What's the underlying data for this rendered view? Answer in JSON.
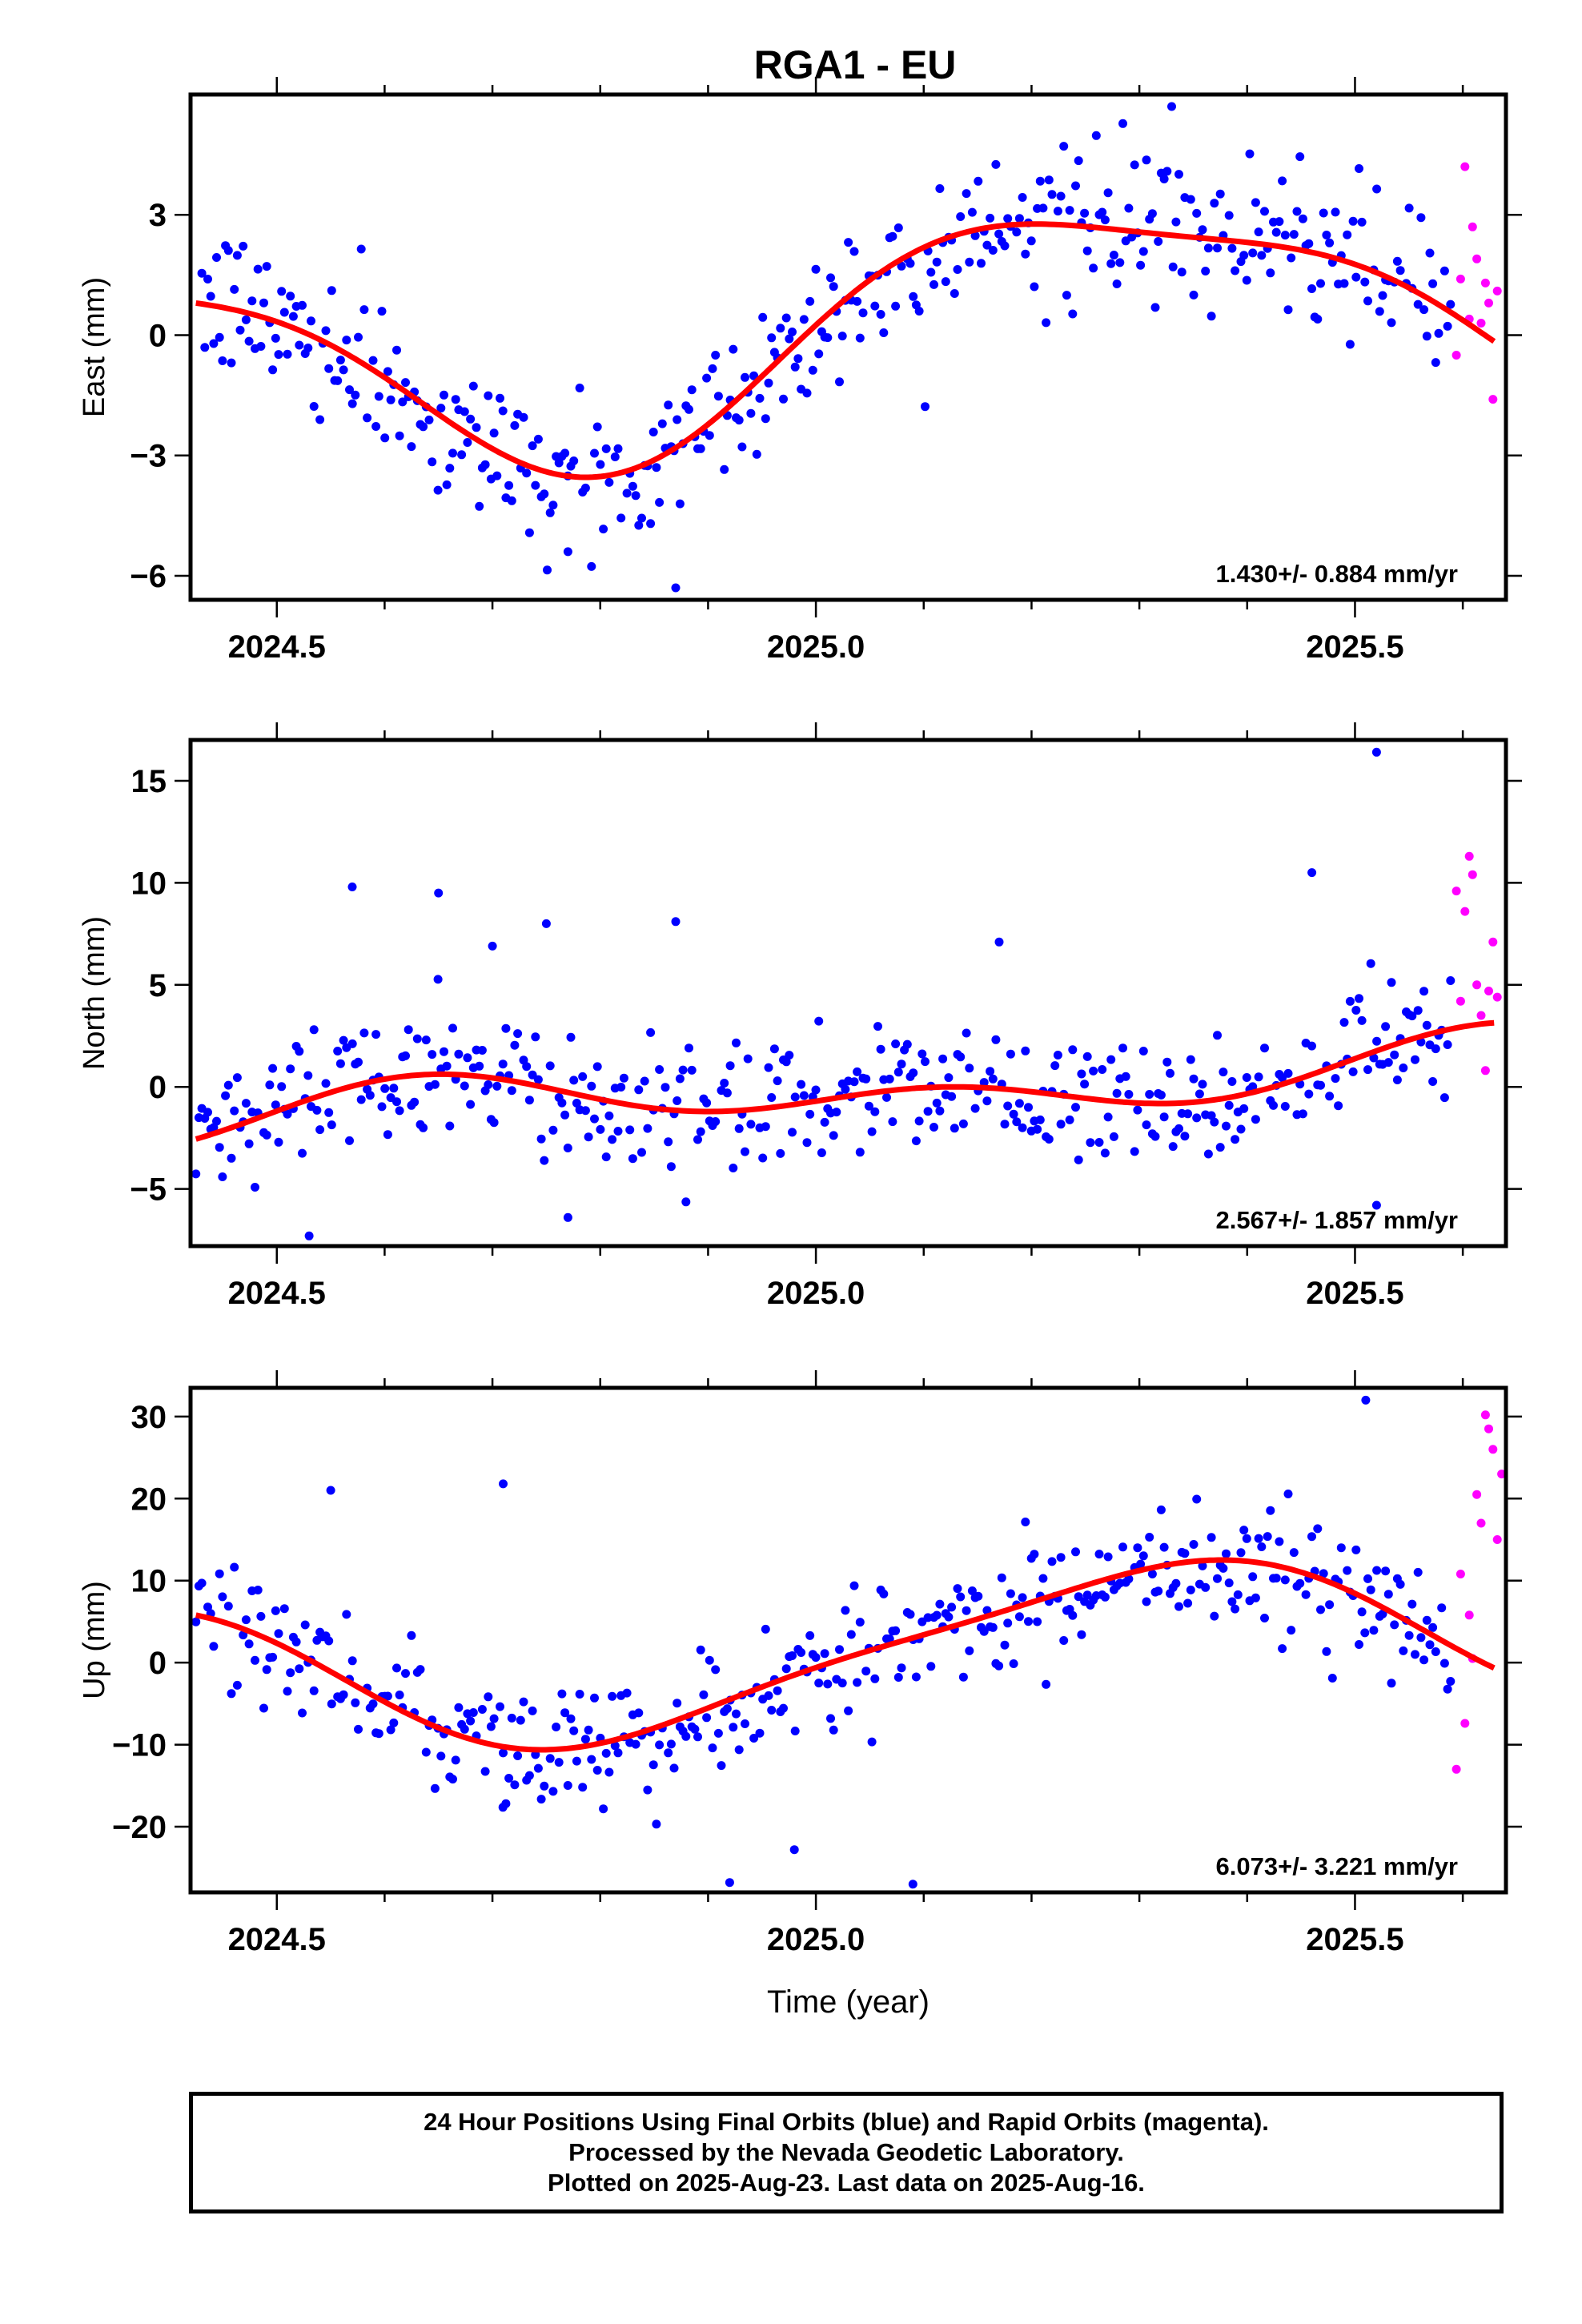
{
  "title": "RGA1 - EU",
  "footer": {
    "line1": "24 Hour Positions Using Final Orbits (blue) and Rapid Orbits (magenta).",
    "line2": "Processed by the Nevada Geodetic Laboratory.",
    "line3": "Plotted on 2025-Aug-23. Last data on 2025-Aug-16."
  },
  "colors": {
    "final": "#0000ff",
    "rapid": "#ff00ff",
    "fit": "#ff0000",
    "frame": "#000000"
  },
  "chart_data": [
    {
      "type": "scatter",
      "id": "east",
      "ylabel": "East (mm)",
      "xlabel": "",
      "xlim": [
        2024.42,
        2025.64
      ],
      "ylim": [
        -6.6,
        6.0
      ],
      "xticks": [
        "2024.5",
        "2025.0",
        "2025.5"
      ],
      "yticks": [
        "−6",
        "−3",
        "0",
        "3"
      ],
      "ytick_values": [
        -6,
        -3,
        0,
        3
      ],
      "rate_text": "1.430+/- 0.884 mm/yr",
      "fit": {
        "mean": 0.15,
        "trend": 1.43,
        "annual_cos": -0.4,
        "annual_sin": 2.7,
        "semi_cos": 0.5,
        "semi_sin": 0.5
      },
      "scatter_sd": 0.95,
      "rapid_points": [
        [
          2025.594,
          -0.5
        ],
        [
          2025.598,
          1.4
        ],
        [
          2025.602,
          4.2
        ],
        [
          2025.606,
          0.4
        ],
        [
          2025.609,
          2.7
        ],
        [
          2025.613,
          1.9
        ],
        [
          2025.617,
          0.3
        ],
        [
          2025.621,
          1.3
        ],
        [
          2025.624,
          0.8
        ],
        [
          2025.628,
          -1.6
        ],
        [
          2025.632,
          1.1
        ]
      ],
      "outliers": [
        [
          2024.87,
          -6.3
        ],
        [
          2025.33,
          5.7
        ],
        [
          2024.77,
          -5.4
        ]
      ]
    },
    {
      "type": "scatter",
      "id": "north",
      "ylabel": "North (mm)",
      "xlabel": "",
      "xlim": [
        2024.42,
        2025.64
      ],
      "ylim": [
        -7.8,
        17.0
      ],
      "xticks": [
        "2024.5",
        "2025.0",
        "2025.5"
      ],
      "yticks": [
        "−5",
        "0",
        "5",
        "10",
        "15"
      ],
      "ytick_values": [
        -5,
        0,
        5,
        10,
        15
      ],
      "rate_text": "2.567+/- 1.857 mm/yr",
      "fit": {
        "mean": -0.3,
        "trend": 2.567,
        "annual_cos": -0.4,
        "annual_sin": -0.9,
        "semi_cos": 0.0,
        "semi_sin": 0.9
      },
      "scatter_sd": 1.55,
      "rapid_points": [
        [
          2025.594,
          9.6
        ],
        [
          2025.598,
          4.2
        ],
        [
          2025.602,
          8.6
        ],
        [
          2025.606,
          11.3
        ],
        [
          2025.609,
          10.4
        ],
        [
          2025.613,
          5.0
        ],
        [
          2025.617,
          3.5
        ],
        [
          2025.621,
          0.8
        ],
        [
          2025.624,
          4.7
        ],
        [
          2025.628,
          7.1
        ],
        [
          2025.632,
          4.4
        ]
      ],
      "outliers": [
        [
          2025.52,
          16.4
        ],
        [
          2024.57,
          9.8
        ],
        [
          2024.65,
          9.5
        ],
        [
          2024.75,
          8.0
        ],
        [
          2024.87,
          8.1
        ],
        [
          2025.46,
          10.5
        ],
        [
          2024.53,
          -7.3
        ],
        [
          2025.52,
          -5.8
        ],
        [
          2024.77,
          -6.4
        ],
        [
          2024.7,
          6.9
        ],
        [
          2025.17,
          7.1
        ]
      ]
    },
    {
      "type": "scatter",
      "id": "up",
      "ylabel": "Up (mm)",
      "xlabel": "Time (year)",
      "xlim": [
        2024.42,
        2025.64
      ],
      "ylim": [
        -28.0,
        33.5
      ],
      "xticks": [
        "2024.5",
        "2025.0",
        "2025.5"
      ],
      "yticks": [
        "−20",
        "−10",
        "0",
        "10",
        "20",
        "30"
      ],
      "ytick_values": [
        -20,
        -10,
        0,
        10,
        20,
        30
      ],
      "rate_text": "6.073+/- 3.221 mm/yr",
      "fit": {
        "mean": 0.9,
        "trend": 6.073,
        "annual_cos": -3.0,
        "annual_sin": 8.5,
        "semi_cos": 1.5,
        "semi_sin": -1.2
      },
      "scatter_sd": 3.8,
      "rapid_points": [
        [
          2025.594,
          -13.0
        ],
        [
          2025.598,
          10.8
        ],
        [
          2025.602,
          -7.4
        ],
        [
          2025.606,
          5.8
        ],
        [
          2025.609,
          0.5
        ],
        [
          2025.613,
          20.5
        ],
        [
          2025.617,
          17.0
        ],
        [
          2025.621,
          30.2
        ],
        [
          2025.624,
          28.5
        ],
        [
          2025.628,
          26.0
        ],
        [
          2025.632,
          15.0
        ],
        [
          2025.636,
          23.0
        ]
      ],
      "outliers": [
        [
          2025.51,
          32.0
        ],
        [
          2024.92,
          -26.8
        ],
        [
          2025.09,
          -27.0
        ],
        [
          2024.98,
          -22.8
        ],
        [
          2024.71,
          21.8
        ],
        [
          2024.55,
          21.0
        ],
        [
          2024.71,
          -11.0
        ]
      ]
    }
  ]
}
